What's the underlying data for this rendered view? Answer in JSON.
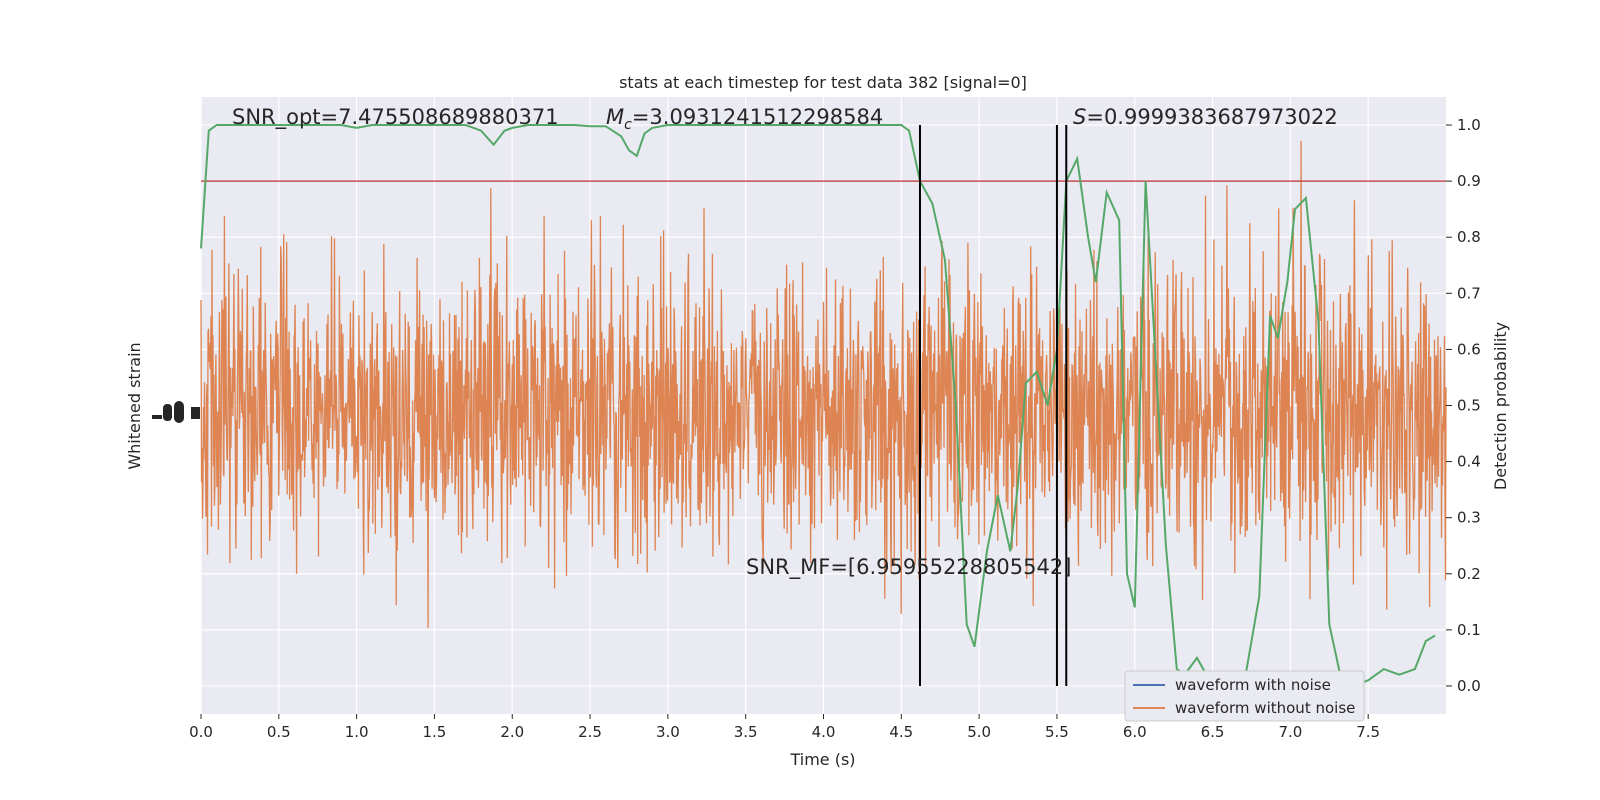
{
  "chart_data": {
    "type": "line",
    "title": "stats at each timestep for test data 382 [signal=0]",
    "xlabel": "Time (s)",
    "ylabel_left": "Whitened strain",
    "ylabel_right": "Detection probability",
    "xlim": [
      0,
      8
    ],
    "ylim_right": [
      -0.05,
      1.05
    ],
    "x_ticks": [
      0.0,
      0.5,
      1.0,
      1.5,
      2.0,
      2.5,
      3.0,
      3.5,
      4.0,
      4.5,
      5.0,
      5.5,
      6.0,
      6.5,
      7.0,
      7.5
    ],
    "x_tick_labels": [
      "0.0",
      "0.5",
      "1.0",
      "1.5",
      "2.0",
      "2.5",
      "3.0",
      "3.5",
      "4.0",
      "4.5",
      "5.0",
      "5.5",
      "6.0",
      "6.5",
      "7.0",
      "7.5"
    ],
    "y_right_ticks": [
      0.0,
      0.1,
      0.2,
      0.3,
      0.4,
      0.5,
      0.6,
      0.7,
      0.8,
      0.9,
      1.0
    ],
    "y_right_tick_labels": [
      "0.0",
      "0.1",
      "0.2",
      "0.3",
      "0.4",
      "0.5",
      "0.6",
      "0.7",
      "0.8",
      "0.9",
      "1.0"
    ],
    "threshold": 0.9,
    "vertical_lines_x": [
      4.62,
      5.5,
      5.56
    ],
    "annotations": {
      "snr_opt": "SNR_opt=7.475508689880371",
      "mc": "=3.0931241512298584",
      "s": "=0.9999383687973022",
      "snr_mf": "SNR_MF=[6.95955228805542]"
    },
    "legend": {
      "position": "lower right",
      "entries": [
        "waveform with noise",
        "waveform without noise"
      ]
    },
    "detection_probability": {
      "x": [
        0.0,
        0.05,
        0.1,
        0.2,
        0.3,
        0.4,
        0.5,
        0.6,
        0.7,
        0.8,
        0.9,
        1.0,
        1.1,
        1.2,
        1.3,
        1.4,
        1.5,
        1.6,
        1.7,
        1.8,
        1.88,
        1.95,
        2.0,
        2.1,
        2.2,
        2.3,
        2.4,
        2.5,
        2.6,
        2.7,
        2.75,
        2.8,
        2.85,
        2.9,
        3.0,
        3.1,
        3.2,
        3.3,
        3.4,
        3.5,
        3.6,
        3.7,
        3.8,
        3.9,
        4.0,
        4.1,
        4.2,
        4.3,
        4.4,
        4.5,
        4.55,
        4.62,
        4.7,
        4.78,
        4.85,
        4.92,
        4.97,
        5.05,
        5.12,
        5.2,
        5.25,
        5.3,
        5.37,
        5.44,
        5.5,
        5.56,
        5.63,
        5.7,
        5.75,
        5.82,
        5.9,
        5.95,
        6.0,
        6.07,
        6.13,
        6.2,
        6.27,
        6.32,
        6.4,
        6.5,
        6.55,
        6.6,
        6.7,
        6.8,
        6.87,
        6.92,
        6.98,
        7.03,
        7.1,
        7.18,
        7.25,
        7.32,
        7.4,
        7.45,
        7.5,
        7.55,
        7.6,
        7.7,
        7.8,
        7.87,
        7.93
      ],
      "y": [
        0.78,
        0.99,
        1.0,
        1.0,
        1.0,
        1.0,
        1.0,
        1.0,
        1.0,
        1.0,
        1.0,
        0.995,
        1.0,
        1.0,
        1.0,
        1.0,
        1.0,
        1.0,
        1.0,
        0.99,
        0.965,
        0.99,
        0.995,
        1.0,
        1.0,
        1.0,
        1.0,
        0.998,
        0.998,
        0.98,
        0.955,
        0.945,
        0.985,
        0.995,
        1.0,
        1.0,
        1.0,
        1.0,
        1.0,
        1.0,
        1.0,
        1.0,
        1.0,
        1.0,
        1.0,
        1.0,
        1.0,
        1.0,
        1.0,
        1.0,
        0.99,
        0.9,
        0.86,
        0.76,
        0.5,
        0.11,
        0.07,
        0.24,
        0.34,
        0.24,
        0.36,
        0.54,
        0.56,
        0.5,
        0.6,
        0.9,
        0.94,
        0.8,
        0.72,
        0.88,
        0.83,
        0.2,
        0.14,
        0.9,
        0.6,
        0.25,
        0.03,
        0.02,
        0.05,
        0.0,
        -0.03,
        0.0,
        0.0,
        0.16,
        0.66,
        0.62,
        0.72,
        0.85,
        0.87,
        0.65,
        0.11,
        0.02,
        0.005,
        0.005,
        0.01,
        0.02,
        0.03,
        0.02,
        0.03,
        0.08,
        0.09
      ]
    }
  },
  "colors": {
    "plot_bg": "#eaeaf2",
    "grid": "#ffffff",
    "noise_waveform": "#4c72b0",
    "clean_waveform": "#dd8452",
    "probability": "#55a868",
    "threshold": "#c44e52",
    "vlines": "#000000"
  }
}
